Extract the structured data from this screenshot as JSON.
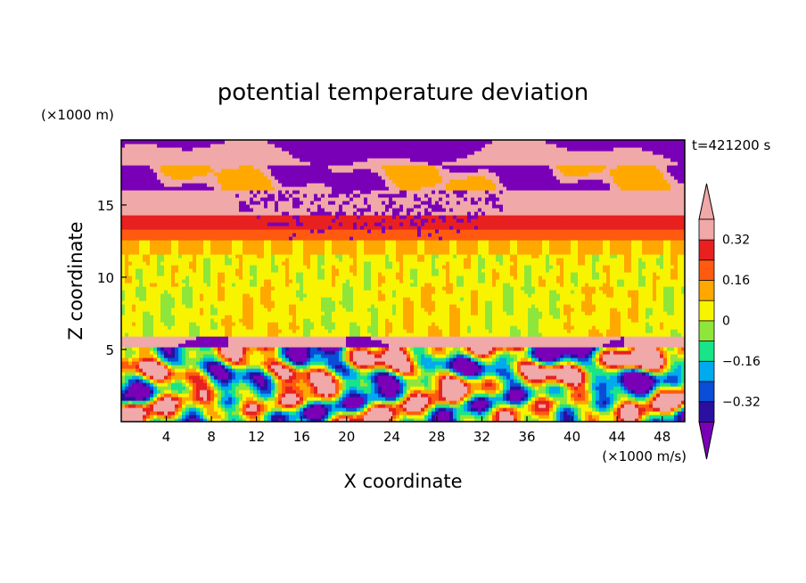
{
  "chart_data": {
    "type": "heatmap",
    "title": "potential temperature deviation",
    "xlabel": "X coordinate",
    "ylabel": "Z coordinate",
    "x_unit": "(×1000 m/s)",
    "y_unit": "(×1000 m)",
    "time_label": "t=421200 s",
    "xlim": [
      0,
      50
    ],
    "ylim": [
      0,
      19.5
    ],
    "x_ticks": [
      4,
      8,
      12,
      16,
      20,
      24,
      28,
      32,
      36,
      40,
      44,
      48
    ],
    "y_ticks": [
      5,
      10,
      15
    ],
    "colorbar": {
      "levels": [
        -0.4,
        -0.32,
        -0.24,
        -0.16,
        -0.08,
        0,
        0.08,
        0.16,
        0.24,
        0.32,
        0.4
      ],
      "colors": [
        "#7a00b8",
        "#2a0fa0",
        "#0a4dd6",
        "#00aaee",
        "#18e48a",
        "#8ee63a",
        "#f8f400",
        "#ffa800",
        "#ff5a10",
        "#e82020",
        "#f0a8a8"
      ],
      "labels": [
        {
          "value": 0.32,
          "text": "0.32"
        },
        {
          "value": 0.16,
          "text": "0.16"
        },
        {
          "value": 0,
          "text": "0"
        },
        {
          "value": -0.16,
          "text": "−0.16"
        },
        {
          "value": -0.32,
          "text": "−0.32"
        }
      ]
    },
    "layers": [
      {
        "z": [
          17.5,
          19.5
        ],
        "description": "mixed pink/purple stratosphere"
      },
      {
        "z": [
          14.2,
          16.0
        ],
        "value": 0.35
      },
      {
        "z": [
          13.4,
          14.2
        ],
        "value": 0.28
      },
      {
        "z": [
          12.6,
          13.4
        ],
        "value": 0.2
      },
      {
        "z": [
          11.6,
          12.6
        ],
        "value": 0.12
      },
      {
        "z": [
          6.0,
          11.6
        ],
        "value": 0.04
      },
      {
        "z": [
          5.5,
          6.0
        ],
        "value": 0.4
      },
      {
        "z": [
          0,
          5.5
        ],
        "description": "turbulent boundary layer"
      }
    ]
  }
}
